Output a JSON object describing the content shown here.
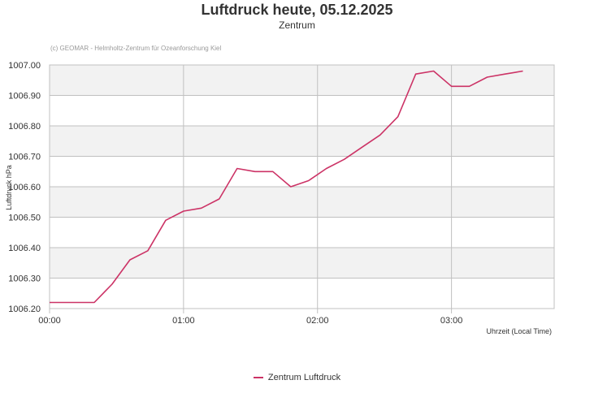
{
  "chart_data": {
    "type": "line",
    "title": "Luftdruck heute, 05.12.2025",
    "subtitle": "Zentrum",
    "credits": "(c) GEOMAR - Helmholtz-Zentrum für Ozeanforschung Kiel",
    "ylabel": "Luftdruck hPa",
    "xlabel": "Uhrzeit (Local Time)",
    "ylim": [
      1006.2,
      1007.0
    ],
    "yticks": [
      "1006.20",
      "1006.30",
      "1006.40",
      "1006.50",
      "1006.60",
      "1006.70",
      "1006.80",
      "1006.90",
      "1007.00"
    ],
    "xlim": [
      "00:00",
      "03:46"
    ],
    "xticks": [
      "00:00",
      "01:00",
      "02:00",
      "03:00"
    ],
    "grid": true,
    "legend_position": "bottom-center",
    "colors": {
      "series": "#cc3366",
      "band": "#f2f2f2",
      "grid": "#c0c0c0"
    },
    "series": [
      {
        "name": "Zentrum Luftdruck",
        "x": [
          "00:00",
          "00:10",
          "00:20",
          "00:28",
          "00:36",
          "00:44",
          "00:52",
          "01:00",
          "01:08",
          "01:16",
          "01:24",
          "01:32",
          "01:40",
          "01:48",
          "01:56",
          "02:04",
          "02:12",
          "02:20",
          "02:28",
          "02:36",
          "02:44",
          "02:52",
          "03:00",
          "03:08",
          "03:16",
          "03:24",
          "03:32"
        ],
        "values": [
          1006.22,
          1006.22,
          1006.22,
          1006.28,
          1006.36,
          1006.39,
          1006.49,
          1006.52,
          1006.53,
          1006.56,
          1006.66,
          1006.65,
          1006.65,
          1006.6,
          1006.62,
          1006.66,
          1006.69,
          1006.73,
          1006.77,
          1006.83,
          1006.97,
          1006.98,
          1006.93,
          1006.93,
          1006.96,
          1006.97,
          1006.98
        ]
      }
    ]
  }
}
